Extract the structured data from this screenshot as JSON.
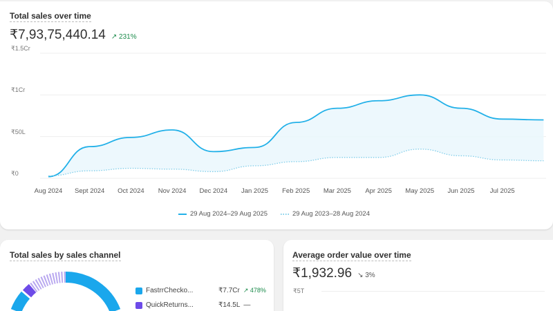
{
  "sales_over_time": {
    "title": "Total sales over time",
    "total": "₹7,93,75,440.14",
    "change": "231%",
    "change_icon": "arrow-up-right-icon",
    "change_color": "#1a8a4a",
    "chart_data": {
      "type": "area",
      "ylabel": "",
      "xlabel": "",
      "y_unit": "₹ lakh",
      "ylim": [
        0,
        150
      ],
      "y_ticks": [
        "₹0",
        "₹50L",
        "₹1Cr",
        "₹1.5Cr"
      ],
      "x_ticks": [
        "Aug 2024",
        "Sept 2024",
        "Oct 2024",
        "Nov 2024",
        "Dec 2024",
        "Jan 2025",
        "Feb 2025",
        "Mar 2025",
        "Apr 2025",
        "May 2025",
        "Jun 2025",
        "Jul 2025"
      ],
      "grid": true,
      "legend_placement": "bottom",
      "series": [
        {
          "name": "29 Aug 2024–29 Aug 2025",
          "color": "#21b0e8",
          "style": "solid",
          "values": [
            2,
            38,
            49,
            58,
            32,
            37,
            67,
            84,
            93,
            100,
            84,
            71,
            70
          ]
        },
        {
          "name": "29 Aug 2023–28 Aug 2024",
          "color": "#7fcde9",
          "style": "dotted",
          "values": [
            3,
            9,
            12,
            11,
            8,
            15,
            20,
            25,
            25,
            35,
            27,
            22,
            21
          ]
        }
      ]
    }
  },
  "by_channel": {
    "title": "Total sales by sales channel",
    "items": [
      {
        "label": "FastrrCheckо...",
        "value": "₹7.7Cr",
        "change": "478%",
        "color": "#1aa7ec"
      },
      {
        "label": "QuickReturns...",
        "value": "₹14.5L",
        "change": "—",
        "color": "#6d4be8"
      }
    ]
  },
  "aov": {
    "title": "Average order value over time",
    "total": "₹1,932.96",
    "change": "3%",
    "change_icon": "arrow-down-right-icon",
    "y_tick": "₹5T"
  }
}
